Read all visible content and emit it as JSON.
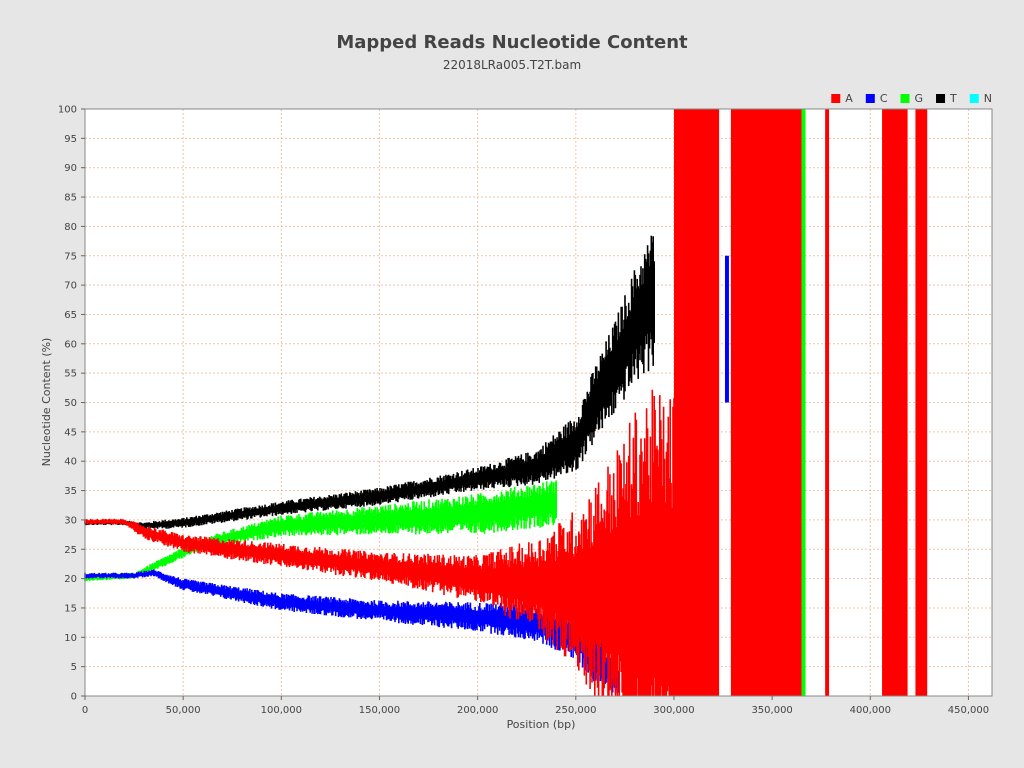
{
  "chart_data": {
    "type": "line",
    "title": "Mapped Reads Nucleotide Content",
    "subtitle": "22018LRa005.T2T.bam",
    "xlabel": "Position (bp)",
    "ylabel": "Nucleotide Content (%)",
    "xlim": [
      0,
      462000
    ],
    "ylim": [
      0,
      100
    ],
    "x_ticks": [
      0,
      50000,
      100000,
      150000,
      200000,
      250000,
      300000,
      350000,
      400000,
      450000
    ],
    "x_tick_labels": [
      "0",
      "50,000",
      "100,000",
      "150,000",
      "200,000",
      "250,000",
      "300,000",
      "350,000",
      "400,000",
      "450,000"
    ],
    "y_ticks": [
      0,
      5,
      10,
      15,
      20,
      25,
      30,
      35,
      40,
      45,
      50,
      55,
      60,
      65,
      70,
      75,
      80,
      85,
      90,
      95,
      100
    ],
    "grid": true,
    "legend_position": "top-right",
    "series": [
      {
        "name": "A",
        "color": "#ff0000",
        "center": [
          [
            0,
            29.7
          ],
          [
            20000,
            29.7
          ],
          [
            30000,
            28
          ],
          [
            50000,
            26
          ],
          [
            100000,
            24
          ],
          [
            150000,
            22
          ],
          [
            200000,
            20
          ],
          [
            250000,
            18
          ],
          [
            300000,
            17
          ]
        ],
        "spread": [
          [
            0,
            0.5
          ],
          [
            20000,
            0.5
          ],
          [
            30000,
            1.2
          ],
          [
            50000,
            1.5
          ],
          [
            100000,
            2.0
          ],
          [
            150000,
            2.5
          ],
          [
            200000,
            4
          ],
          [
            230000,
            8
          ],
          [
            250000,
            14
          ],
          [
            270000,
            24
          ],
          [
            285000,
            35
          ]
        ],
        "blocks": [
          [
            300000,
            323000,
            0,
            100
          ],
          [
            329000,
            365000,
            0,
            100
          ],
          [
            377000,
            379000,
            0,
            100
          ],
          [
            406000,
            419000,
            0,
            100
          ],
          [
            423000,
            429000,
            0,
            100
          ]
        ]
      },
      {
        "name": "C",
        "color": "#0000ff",
        "center": [
          [
            0,
            20.5
          ],
          [
            25000,
            20.5
          ],
          [
            35000,
            21
          ],
          [
            50000,
            19
          ],
          [
            100000,
            16
          ],
          [
            150000,
            14.5
          ],
          [
            200000,
            13.5
          ],
          [
            230000,
            12.5
          ],
          [
            250000,
            10
          ],
          [
            265000,
            5
          ],
          [
            272000,
            2
          ]
        ],
        "spread": [
          [
            0,
            0.5
          ],
          [
            25000,
            0.5
          ],
          [
            35000,
            0.6
          ],
          [
            50000,
            1.0
          ],
          [
            100000,
            1.5
          ],
          [
            150000,
            1.8
          ],
          [
            200000,
            2.5
          ],
          [
            240000,
            3.5
          ],
          [
            260000,
            4.5
          ],
          [
            272000,
            2.5
          ]
        ],
        "blocks": [
          [
            326000,
            328000,
            50,
            75
          ]
        ]
      },
      {
        "name": "G",
        "color": "#00ff00",
        "center": [
          [
            0,
            20
          ],
          [
            25000,
            20.5
          ],
          [
            35000,
            22
          ],
          [
            60000,
            26
          ],
          [
            100000,
            29
          ],
          [
            150000,
            30
          ],
          [
            200000,
            31
          ],
          [
            240000,
            33
          ]
        ],
        "spread": [
          [
            0,
            0.5
          ],
          [
            25000,
            0.5
          ],
          [
            35000,
            0.8
          ],
          [
            60000,
            1.0
          ],
          [
            100000,
            1.8
          ],
          [
            150000,
            2.5
          ],
          [
            200000,
            3.5
          ],
          [
            240000,
            4
          ]
        ],
        "blocks": [
          [
            365000,
            367000,
            0,
            100
          ]
        ]
      },
      {
        "name": "T",
        "color": "#000000",
        "center": [
          [
            0,
            29.5
          ],
          [
            20000,
            29.5
          ],
          [
            30000,
            29
          ],
          [
            50000,
            29.5
          ],
          [
            100000,
            32
          ],
          [
            150000,
            34
          ],
          [
            200000,
            37
          ],
          [
            230000,
            39
          ],
          [
            250000,
            43
          ],
          [
            260000,
            50
          ],
          [
            270000,
            56
          ],
          [
            280000,
            63
          ],
          [
            290000,
            68
          ]
        ],
        "spread": [
          [
            0,
            0.4
          ],
          [
            20000,
            0.4
          ],
          [
            40000,
            0.8
          ],
          [
            100000,
            1.2
          ],
          [
            150000,
            1.5
          ],
          [
            200000,
            2
          ],
          [
            230000,
            3
          ],
          [
            250000,
            5
          ],
          [
            270000,
            8
          ],
          [
            290000,
            12
          ]
        ],
        "blocks": []
      },
      {
        "name": "N",
        "color": "#00ffff",
        "center": [
          [
            0,
            0.2
          ],
          [
            255000,
            0.2
          ]
        ],
        "spread": [
          [
            0,
            0.0
          ],
          [
            255000,
            0.0
          ]
        ],
        "blocks": []
      }
    ]
  }
}
